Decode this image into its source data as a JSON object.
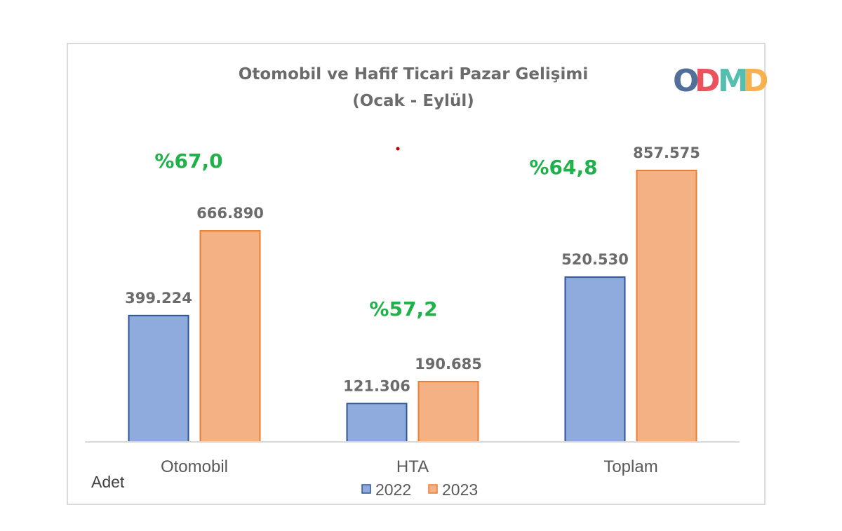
{
  "chart_data": {
    "type": "bar",
    "title": "Otomobil ve Hafif Ticari Pazar Gelişimi",
    "subtitle": "(Ocak - Eylül)",
    "unit_label": "Adet",
    "categories": [
      "Otomobil",
      "HTA",
      "Toplam"
    ],
    "series": [
      {
        "name": "2022",
        "values": [
          399224,
          121306,
          520530
        ],
        "labels": [
          "399.224",
          "121.306",
          "520.530"
        ],
        "fill": "#8faadc",
        "stroke": "#2f5597"
      },
      {
        "name": "2023",
        "values": [
          666890,
          190685,
          857575
        ],
        "labels": [
          "666.890",
          "190.685",
          "857.575"
        ],
        "fill": "#f4b183",
        "stroke": "#ed7d31"
      }
    ],
    "growth_labels": [
      "%67,0",
      "%57,2",
      "%64,8"
    ],
    "growth_color": "#1fb14a",
    "ylim": [
      0,
      900000
    ],
    "grid": false,
    "legend_position": "bottom"
  },
  "logo": {
    "text": "ODMD",
    "letters": [
      "O",
      "D",
      "M",
      "D"
    ],
    "colors": [
      "#3f5f8f",
      "#e8404b",
      "#42b8a6",
      "#f7a93a"
    ]
  }
}
